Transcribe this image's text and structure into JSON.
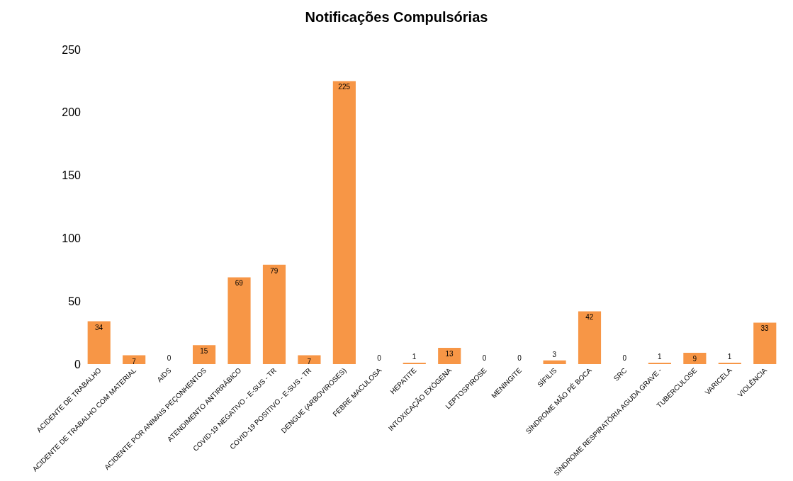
{
  "chart_data": {
    "type": "bar",
    "title": "Notificações Compulsórias",
    "categories": [
      "ACIDENTE DE TRABALHO",
      "ACIDENTE DE TRABALHO COM MATERIAL",
      "AIDS",
      "ACIDENTE POR ANIMAIS PEÇONHENTOS",
      "ATENDIMENTO ANTIRRÁBICO",
      "COVID-19 NEGATIVO - E-SUS - TR",
      "COVID-19 POSITIVO - E-SUS - TR",
      "DENGUE (ARBOVIROSES)",
      "FEBRE MACULOSA",
      "HEPATITE",
      "INTOXICAÇÃO EXÓGENA",
      "LEPTOSPIROSE",
      "MENINGITE",
      "SÍFILIS",
      "SÍNDROME MÃO PÉ BOCA",
      "SRC",
      "SÍNDROME RESPIRATÓRIA AGUDA GRAVE -",
      "TUBERCULOSE",
      "VARICELA",
      "VIOLÊNCIA"
    ],
    "values": [
      34,
      7,
      0,
      15,
      69,
      79,
      7,
      225,
      0,
      1,
      13,
      0,
      0,
      3,
      42,
      0,
      1,
      9,
      1,
      33
    ],
    "color": "#f79646",
    "ylim": [
      0,
      250
    ],
    "yticks": [
      0,
      50,
      100,
      150,
      200,
      250
    ],
    "data_labels": true,
    "legend": false
  }
}
